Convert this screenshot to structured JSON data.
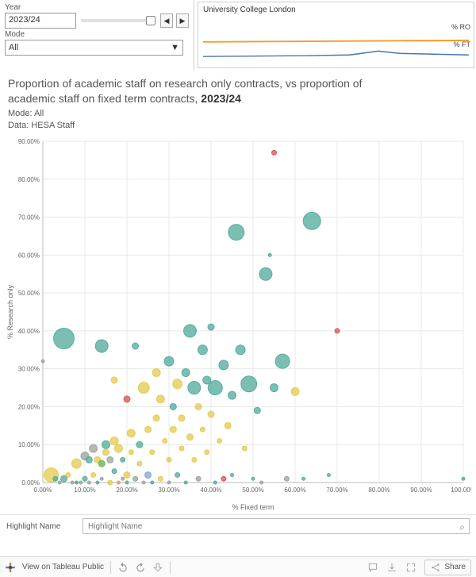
{
  "controls": {
    "year_label": "Year",
    "year_value": "2023/24",
    "mode_label": "Mode",
    "mode_value": "All",
    "prev": "◀",
    "next": "▶"
  },
  "mini_chart": {
    "title": "University College London",
    "label_ro": "% RO",
    "label_ft": "% FT",
    "ro_color": "#f39c2c",
    "ft_color": "#4a78a8",
    "ro_points": [
      [
        0,
        36
      ],
      [
        100,
        34
      ]
    ],
    "ft_line": "M0,55 L38,54 L55,53 L66,48 L74,51 L100,53"
  },
  "title": {
    "line1": "Proportion of academic staff on research only contracts, vs proportion of",
    "line2_prefix": "academic staff on fixed term contracts, ",
    "line2_bold": "2023/24",
    "mode_prefix": "Mode: ",
    "mode": "All",
    "data_prefix": "Data: ",
    "data": "HESA Staff"
  },
  "scatter": {
    "type": "scatter",
    "xlabel": "% Fixed term",
    "ylabel": "% Research only",
    "xlim": [
      0,
      100
    ],
    "ylim": [
      0,
      90
    ],
    "xtick_step": 10,
    "ytick_step": 10,
    "tick_suffix": ".00%",
    "background_color": "#ffffff",
    "grid_color": "#e8e8e8",
    "label_fontsize": 9,
    "tick_fontsize": 8,
    "colors": {
      "teal": "#4fa99a",
      "yellow": "#e3c94e",
      "red": "#d65151",
      "grey": "#9aa29a",
      "blue": "#7aa5d6",
      "green": "#6bab4a",
      "orange": "#e59a3c"
    },
    "points": [
      {
        "x": 0,
        "y": 32,
        "r": 2,
        "c": "grey"
      },
      {
        "x": 2,
        "y": 2,
        "r": 9,
        "c": "yellow"
      },
      {
        "x": 3,
        "y": 1,
        "r": 3,
        "c": "teal"
      },
      {
        "x": 4,
        "y": 0,
        "r": 2,
        "c": "grey"
      },
      {
        "x": 5,
        "y": 1,
        "r": 4,
        "c": "teal"
      },
      {
        "x": 5,
        "y": 38,
        "r": 13,
        "c": "teal"
      },
      {
        "x": 6,
        "y": 2,
        "r": 3,
        "c": "yellow"
      },
      {
        "x": 7,
        "y": 0,
        "r": 2,
        "c": "grey"
      },
      {
        "x": 8,
        "y": 5,
        "r": 6,
        "c": "yellow"
      },
      {
        "x": 8,
        "y": 0,
        "r": 2,
        "c": "teal"
      },
      {
        "x": 9,
        "y": 0,
        "r": 2,
        "c": "grey"
      },
      {
        "x": 10,
        "y": 1,
        "r": 3,
        "c": "teal"
      },
      {
        "x": 10,
        "y": 7,
        "r": 5,
        "c": "grey"
      },
      {
        "x": 11,
        "y": 6,
        "r": 4,
        "c": "teal"
      },
      {
        "x": 11,
        "y": 0,
        "r": 2,
        "c": "grey"
      },
      {
        "x": 12,
        "y": 9,
        "r": 5,
        "c": "grey"
      },
      {
        "x": 12,
        "y": 2,
        "r": 3,
        "c": "yellow"
      },
      {
        "x": 13,
        "y": 0,
        "r": 2,
        "c": "teal"
      },
      {
        "x": 13,
        "y": 6,
        "r": 4,
        "c": "yellow"
      },
      {
        "x": 14,
        "y": 36,
        "r": 8,
        "c": "teal"
      },
      {
        "x": 14,
        "y": 5,
        "r": 4,
        "c": "green"
      },
      {
        "x": 14,
        "y": 1,
        "r": 2,
        "c": "grey"
      },
      {
        "x": 15,
        "y": 10,
        "r": 5,
        "c": "teal"
      },
      {
        "x": 15,
        "y": 8,
        "r": 4,
        "c": "yellow"
      },
      {
        "x": 16,
        "y": 0,
        "r": 3,
        "c": "yellow"
      },
      {
        "x": 16,
        "y": 6,
        "r": 4,
        "c": "grey"
      },
      {
        "x": 17,
        "y": 27,
        "r": 4,
        "c": "yellow"
      },
      {
        "x": 17,
        "y": 11,
        "r": 5,
        "c": "yellow"
      },
      {
        "x": 17,
        "y": 3,
        "r": 3,
        "c": "teal"
      },
      {
        "x": 18,
        "y": 0,
        "r": 2,
        "c": "orange"
      },
      {
        "x": 18,
        "y": 9,
        "r": 5,
        "c": "yellow"
      },
      {
        "x": 19,
        "y": 1,
        "r": 2,
        "c": "grey"
      },
      {
        "x": 19,
        "y": 6,
        "r": 3,
        "c": "teal"
      },
      {
        "x": 20,
        "y": 22,
        "r": 4,
        "c": "red"
      },
      {
        "x": 20,
        "y": 2,
        "r": 4,
        "c": "yellow"
      },
      {
        "x": 20,
        "y": 0,
        "r": 2,
        "c": "teal"
      },
      {
        "x": 21,
        "y": 13,
        "r": 5,
        "c": "yellow"
      },
      {
        "x": 21,
        "y": 8,
        "r": 3,
        "c": "yellow"
      },
      {
        "x": 22,
        "y": 36,
        "r": 4,
        "c": "teal"
      },
      {
        "x": 22,
        "y": 1,
        "r": 3,
        "c": "grey"
      },
      {
        "x": 23,
        "y": 5,
        "r": 3,
        "c": "yellow"
      },
      {
        "x": 23,
        "y": 10,
        "r": 4,
        "c": "teal"
      },
      {
        "x": 24,
        "y": 25,
        "r": 7,
        "c": "yellow"
      },
      {
        "x": 24,
        "y": 0,
        "r": 2,
        "c": "grey"
      },
      {
        "x": 25,
        "y": 2,
        "r": 4,
        "c": "blue"
      },
      {
        "x": 25,
        "y": 14,
        "r": 4,
        "c": "yellow"
      },
      {
        "x": 26,
        "y": 8,
        "r": 3,
        "c": "yellow"
      },
      {
        "x": 26,
        "y": 0,
        "r": 2,
        "c": "teal"
      },
      {
        "x": 27,
        "y": 29,
        "r": 5,
        "c": "yellow"
      },
      {
        "x": 27,
        "y": 17,
        "r": 4,
        "c": "yellow"
      },
      {
        "x": 28,
        "y": 1,
        "r": 3,
        "c": "yellow"
      },
      {
        "x": 28,
        "y": 22,
        "r": 5,
        "c": "yellow"
      },
      {
        "x": 29,
        "y": 11,
        "r": 3,
        "c": "yellow"
      },
      {
        "x": 30,
        "y": 0,
        "r": 2,
        "c": "grey"
      },
      {
        "x": 30,
        "y": 32,
        "r": 6,
        "c": "teal"
      },
      {
        "x": 30,
        "y": 6,
        "r": 3,
        "c": "yellow"
      },
      {
        "x": 31,
        "y": 14,
        "r": 4,
        "c": "yellow"
      },
      {
        "x": 31,
        "y": 20,
        "r": 4,
        "c": "teal"
      },
      {
        "x": 32,
        "y": 26,
        "r": 6,
        "c": "yellow"
      },
      {
        "x": 32,
        "y": 2,
        "r": 3,
        "c": "teal"
      },
      {
        "x": 33,
        "y": 9,
        "r": 3,
        "c": "yellow"
      },
      {
        "x": 33,
        "y": 17,
        "r": 4,
        "c": "yellow"
      },
      {
        "x": 34,
        "y": 0,
        "r": 2,
        "c": "teal"
      },
      {
        "x": 34,
        "y": 29,
        "r": 5,
        "c": "teal"
      },
      {
        "x": 35,
        "y": 40,
        "r": 8,
        "c": "teal"
      },
      {
        "x": 35,
        "y": 12,
        "r": 4,
        "c": "yellow"
      },
      {
        "x": 36,
        "y": 6,
        "r": 3,
        "c": "yellow"
      },
      {
        "x": 36,
        "y": 25,
        "r": 8,
        "c": "teal"
      },
      {
        "x": 37,
        "y": 1,
        "r": 3,
        "c": "grey"
      },
      {
        "x": 37,
        "y": 20,
        "r": 4,
        "c": "yellow"
      },
      {
        "x": 38,
        "y": 35,
        "r": 6,
        "c": "teal"
      },
      {
        "x": 38,
        "y": 14,
        "r": 3,
        "c": "yellow"
      },
      {
        "x": 39,
        "y": 8,
        "r": 3,
        "c": "yellow"
      },
      {
        "x": 39,
        "y": 27,
        "r": 5,
        "c": "teal"
      },
      {
        "x": 40,
        "y": 41,
        "r": 4,
        "c": "teal"
      },
      {
        "x": 40,
        "y": 18,
        "r": 4,
        "c": "yellow"
      },
      {
        "x": 41,
        "y": 0,
        "r": 2,
        "c": "teal"
      },
      {
        "x": 41,
        "y": 25,
        "r": 9,
        "c": "teal"
      },
      {
        "x": 42,
        "y": 11,
        "r": 3,
        "c": "yellow"
      },
      {
        "x": 43,
        "y": 31,
        "r": 6,
        "c": "teal"
      },
      {
        "x": 43,
        "y": 1,
        "r": 3,
        "c": "red"
      },
      {
        "x": 44,
        "y": 15,
        "r": 4,
        "c": "yellow"
      },
      {
        "x": 45,
        "y": 23,
        "r": 5,
        "c": "teal"
      },
      {
        "x": 45,
        "y": 2,
        "r": 2,
        "c": "teal"
      },
      {
        "x": 46,
        "y": 66,
        "r": 10,
        "c": "teal"
      },
      {
        "x": 47,
        "y": 35,
        "r": 6,
        "c": "teal"
      },
      {
        "x": 48,
        "y": 9,
        "r": 3,
        "c": "yellow"
      },
      {
        "x": 49,
        "y": 26,
        "r": 10,
        "c": "teal"
      },
      {
        "x": 50,
        "y": 1,
        "r": 2,
        "c": "teal"
      },
      {
        "x": 51,
        "y": 19,
        "r": 4,
        "c": "teal"
      },
      {
        "x": 52,
        "y": 0,
        "r": 2,
        "c": "grey"
      },
      {
        "x": 53,
        "y": 55,
        "r": 8,
        "c": "teal"
      },
      {
        "x": 54,
        "y": 60,
        "r": 2,
        "c": "teal"
      },
      {
        "x": 55,
        "y": 25,
        "r": 5,
        "c": "teal"
      },
      {
        "x": 55,
        "y": 87,
        "r": 3,
        "c": "red"
      },
      {
        "x": 57,
        "y": 32,
        "r": 9,
        "c": "teal"
      },
      {
        "x": 58,
        "y": 1,
        "r": 3,
        "c": "grey"
      },
      {
        "x": 60,
        "y": 24,
        "r": 5,
        "c": "yellow"
      },
      {
        "x": 62,
        "y": 1,
        "r": 2,
        "c": "teal"
      },
      {
        "x": 64,
        "y": 69,
        "r": 11,
        "c": "teal"
      },
      {
        "x": 68,
        "y": 2,
        "r": 2,
        "c": "teal"
      },
      {
        "x": 70,
        "y": 40,
        "r": 3,
        "c": "red"
      },
      {
        "x": 100,
        "y": 1,
        "r": 2,
        "c": "teal"
      }
    ]
  },
  "highlight": {
    "label": "Highlight Name",
    "placeholder": "Highlight Name"
  },
  "footer": {
    "view": "View on Tableau Public",
    "share": "Share"
  }
}
